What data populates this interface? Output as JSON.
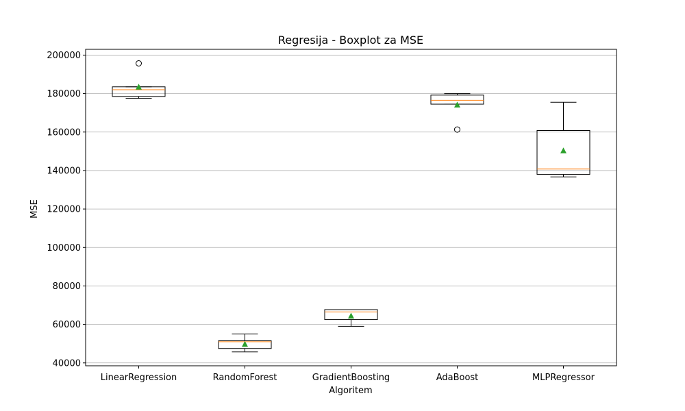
{
  "chart_data": {
    "type": "boxplot",
    "title": "Regresija - Boxplot za MSE",
    "xlabel": "Algoritem",
    "ylabel": "MSE",
    "ylim": [
      38500,
      203000
    ],
    "yticks": [
      40000,
      60000,
      80000,
      100000,
      120000,
      140000,
      160000,
      180000,
      200000
    ],
    "y_grid": true,
    "x_grid": false,
    "categories": [
      "LinearRegression",
      "RandomForest",
      "GradientBoosting",
      "AdaBoost",
      "MLPRegressor"
    ],
    "boxes": [
      {
        "whislo": 177500,
        "q1": 178500,
        "med": 182000,
        "q3": 183500,
        "whishi": 183500,
        "mean": 183500,
        "fliers": [
          195700
        ]
      },
      {
        "whislo": 45700,
        "q1": 47500,
        "med": 51000,
        "q3": 51500,
        "whishi": 55000,
        "mean": 49800,
        "fliers": []
      },
      {
        "whislo": 59000,
        "q1": 62500,
        "med": 66500,
        "q3": 67700,
        "whishi": 67700,
        "mean": 64500,
        "fliers": []
      },
      {
        "whislo": 174500,
        "q1": 174500,
        "med": 176500,
        "q3": 179200,
        "whishi": 180000,
        "mean": 174200,
        "fliers": [
          161300
        ]
      },
      {
        "whislo": 136700,
        "q1": 138000,
        "med": 140800,
        "q3": 160800,
        "whishi": 175500,
        "mean": 150400,
        "fliers": []
      }
    ],
    "colors": {
      "box": "#000000",
      "median": "#ff7f0e",
      "mean": "#2ca02c",
      "grid": "#b0b0b0"
    }
  }
}
